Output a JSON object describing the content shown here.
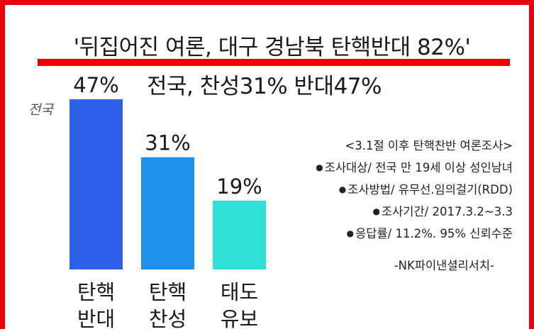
{
  "title": "'뒤집어진 여론, 대구 경남북 탄핵반대 82%'",
  "subtitle": "전국, 찬성31% 반대47%",
  "region_label": "전국",
  "colors": {
    "frame": "#e8000b",
    "underline": "#e8000b",
    "bar_dark_blue": "#2f60ea",
    "bar_blue": "#1f8fed",
    "bar_teal": "#2ee0d6"
  },
  "survey_notes": {
    "heading": "<3.1절 이후 탄핵찬반 여론조사>",
    "bullet_icon": "bullet-dot-icon",
    "lines": [
      "조사대상/ 전국 만 19세 이상 성인남녀",
      "조사방법/ 유무선.임의걸기(RDD)",
      "조사기간/ 2017.3.2~3.3",
      "응답률/ 11.2%. 95% 신뢰수준"
    ],
    "source": "-NK파이낸셜리서치-"
  },
  "chart_data": {
    "type": "bar",
    "title": "전국, 찬성31% 반대47%",
    "xlabel": "",
    "ylabel": "",
    "ylim": [
      0,
      47
    ],
    "grid": false,
    "legend": "none",
    "categories": [
      [
        "탄핵",
        "반대"
      ],
      [
        "탄핵",
        "찬성"
      ],
      [
        "태도",
        "유보"
      ]
    ],
    "values": [
      47,
      31,
      19
    ],
    "value_labels": [
      "47%",
      "31%",
      "19%"
    ],
    "bar_colors": [
      "#2f60ea",
      "#1f8fed",
      "#2ee0d6"
    ]
  }
}
